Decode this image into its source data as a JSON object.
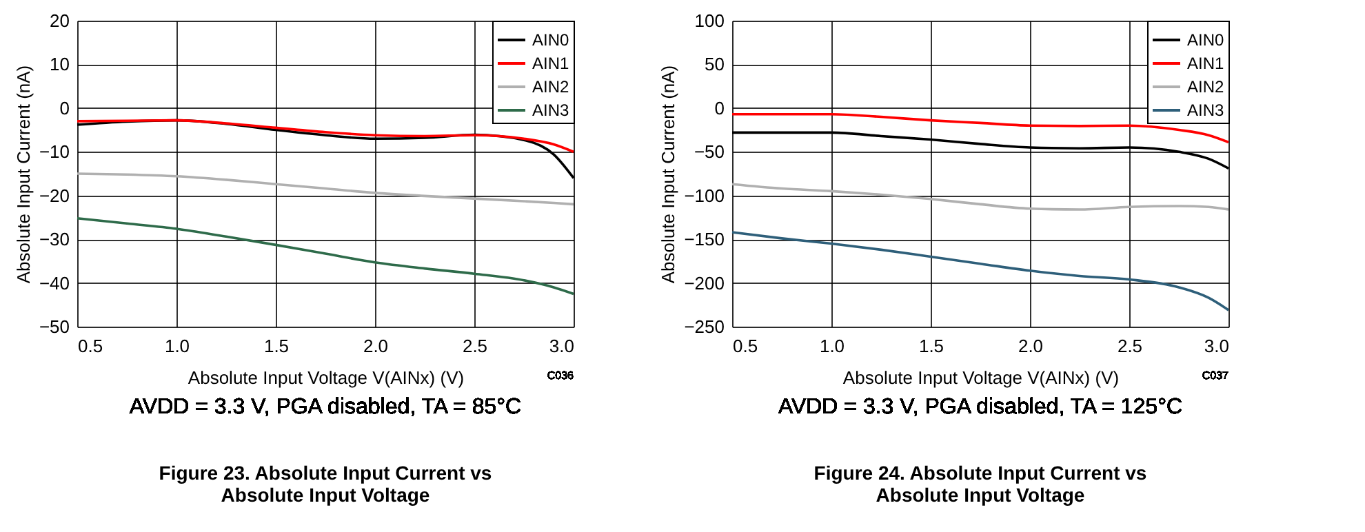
{
  "chart_data": [
    {
      "type": "line",
      "title": "Figure 23. Absolute Input Current vs\nAbsolute Input Voltage",
      "xlabel": "Absolute Input Voltage V(AINx) (V)",
      "ylabel": "Absolute Input Current (nA)",
      "xlim": [
        0.5,
        3.0
      ],
      "xticks": [
        {
          "value": 0.5,
          "label": "0.5"
        },
        {
          "value": 1.0,
          "label": "1.0"
        },
        {
          "value": 1.5,
          "label": "1.5"
        },
        {
          "value": 2.0,
          "label": "2.0"
        },
        {
          "value": 2.5,
          "label": "2.5"
        },
        {
          "value": 3.0,
          "label": "3.0"
        }
      ],
      "ylim": [
        -50,
        20
      ],
      "yticks": [
        -50,
        -40,
        -30,
        -20,
        -10,
        0,
        10,
        20
      ],
      "grid": true,
      "legend": "top right",
      "line_style": "solid",
      "annotations": [
        "C036",
        "AVDD = 3.3 V, PGA disabled, TA = 85°C"
      ],
      "x": [
        0.5,
        0.75,
        1.0,
        1.25,
        1.5,
        1.75,
        2.0,
        2.25,
        2.5,
        2.75,
        2.9,
        3.0
      ],
      "series": [
        {
          "name": "AIN0",
          "color": "#000000",
          "values": [
            -3.8,
            -3.1,
            -2.8,
            -3.6,
            -5,
            -6.2,
            -7,
            -6.8,
            -6.1,
            -7.3,
            -10.6,
            -16
          ]
        },
        {
          "name": "AIN1",
          "color": "#ff0000",
          "values": [
            -3,
            -2.9,
            -2.8,
            -3.5,
            -4.5,
            -5.5,
            -6.2,
            -6.4,
            -6.2,
            -7,
            -8.3,
            -10
          ]
        },
        {
          "name": "AIN2",
          "color": "#b0b0b0",
          "values": [
            -15,
            -15.2,
            -15.6,
            -16.4,
            -17.4,
            -18.4,
            -19.4,
            -20.1,
            -20.7,
            -21.3,
            -21.7,
            -22
          ]
        },
        {
          "name": "AIN3",
          "color": "#2e6b4a",
          "values": [
            -25.2,
            -26.4,
            -27.6,
            -29.4,
            -31.3,
            -33.3,
            -35.3,
            -36.7,
            -37.9,
            -39.4,
            -41,
            -42.5
          ]
        }
      ]
    },
    {
      "type": "line",
      "title": "Figure 24. Absolute Input Current vs\nAbsolute Input Voltage",
      "xlabel": "Absolute Input Voltage V(AINx) (V)",
      "ylabel": "Absolute Input Current (nA)",
      "xlim": [
        0.5,
        3.0
      ],
      "xticks": [
        {
          "value": 0.5,
          "label": "0.5"
        },
        {
          "value": 1.0,
          "label": "1.0"
        },
        {
          "value": 1.5,
          "label": "1.5"
        },
        {
          "value": 2.0,
          "label": "2.0"
        },
        {
          "value": 2.5,
          "label": "2.5"
        },
        {
          "value": 3.0,
          "label": "3.0"
        }
      ],
      "ylim": [
        -250,
        100
      ],
      "yticks": [
        -250,
        -200,
        -150,
        -100,
        -50,
        0,
        50,
        100
      ],
      "grid": true,
      "legend": "top right",
      "line_style": "solid",
      "annotations": [
        "C037",
        "AVDD = 3.3 V, PGA disabled, TA = 125°C"
      ],
      "x": [
        0.5,
        0.75,
        1.0,
        1.25,
        1.5,
        1.75,
        2.0,
        2.25,
        2.5,
        2.75,
        2.9,
        3.0
      ],
      "series": [
        {
          "name": "AIN0",
          "color": "#000000",
          "values": [
            -28,
            -28,
            -28,
            -32,
            -36,
            -41,
            -45,
            -46,
            -45,
            -50,
            -58,
            -69
          ]
        },
        {
          "name": "AIN1",
          "color": "#ff0000",
          "values": [
            -7,
            -7,
            -7,
            -10,
            -14,
            -17,
            -20,
            -20.5,
            -20,
            -25,
            -31,
            -39
          ]
        },
        {
          "name": "AIN2",
          "color": "#b0b0b0",
          "values": [
            -87,
            -92,
            -95,
            -99,
            -104,
            -110,
            -115,
            -116,
            -113,
            -112,
            -113,
            -116
          ]
        },
        {
          "name": "AIN3",
          "color": "#2e5f7a",
          "values": [
            -142,
            -149,
            -155,
            -162,
            -170,
            -178,
            -186,
            -192,
            -196,
            -205,
            -217,
            -231
          ]
        }
      ]
    }
  ]
}
